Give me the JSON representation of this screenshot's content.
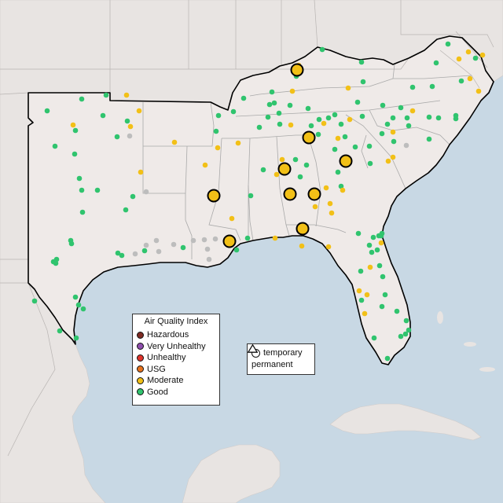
{
  "legend_aqi": {
    "title": "Air Quality Index",
    "items": [
      {
        "label": "Hazardous",
        "color": "#7e2b23"
      },
      {
        "label": "Very Unhealthy",
        "color": "#8f4fae"
      },
      {
        "label": "Unhealthy",
        "color": "#e0342c"
      },
      {
        "label": "USG",
        "color": "#e8731e"
      },
      {
        "label": "Moderate",
        "color": "#f2c017"
      },
      {
        "label": "Good",
        "color": "#30c46e"
      }
    ]
  },
  "legend_type": {
    "items": [
      {
        "label": "temporary",
        "shape": "circle"
      },
      {
        "label": "permanent",
        "shape": "triangle"
      }
    ]
  },
  "colors": {
    "water": "#c8d8e4",
    "land": "#efeae8",
    "land_outside": "#e8e4e2",
    "border_highlight": "#000000",
    "border_state": "#a9a9a9",
    "no_data_dot": "#bdbdbd"
  }
}
